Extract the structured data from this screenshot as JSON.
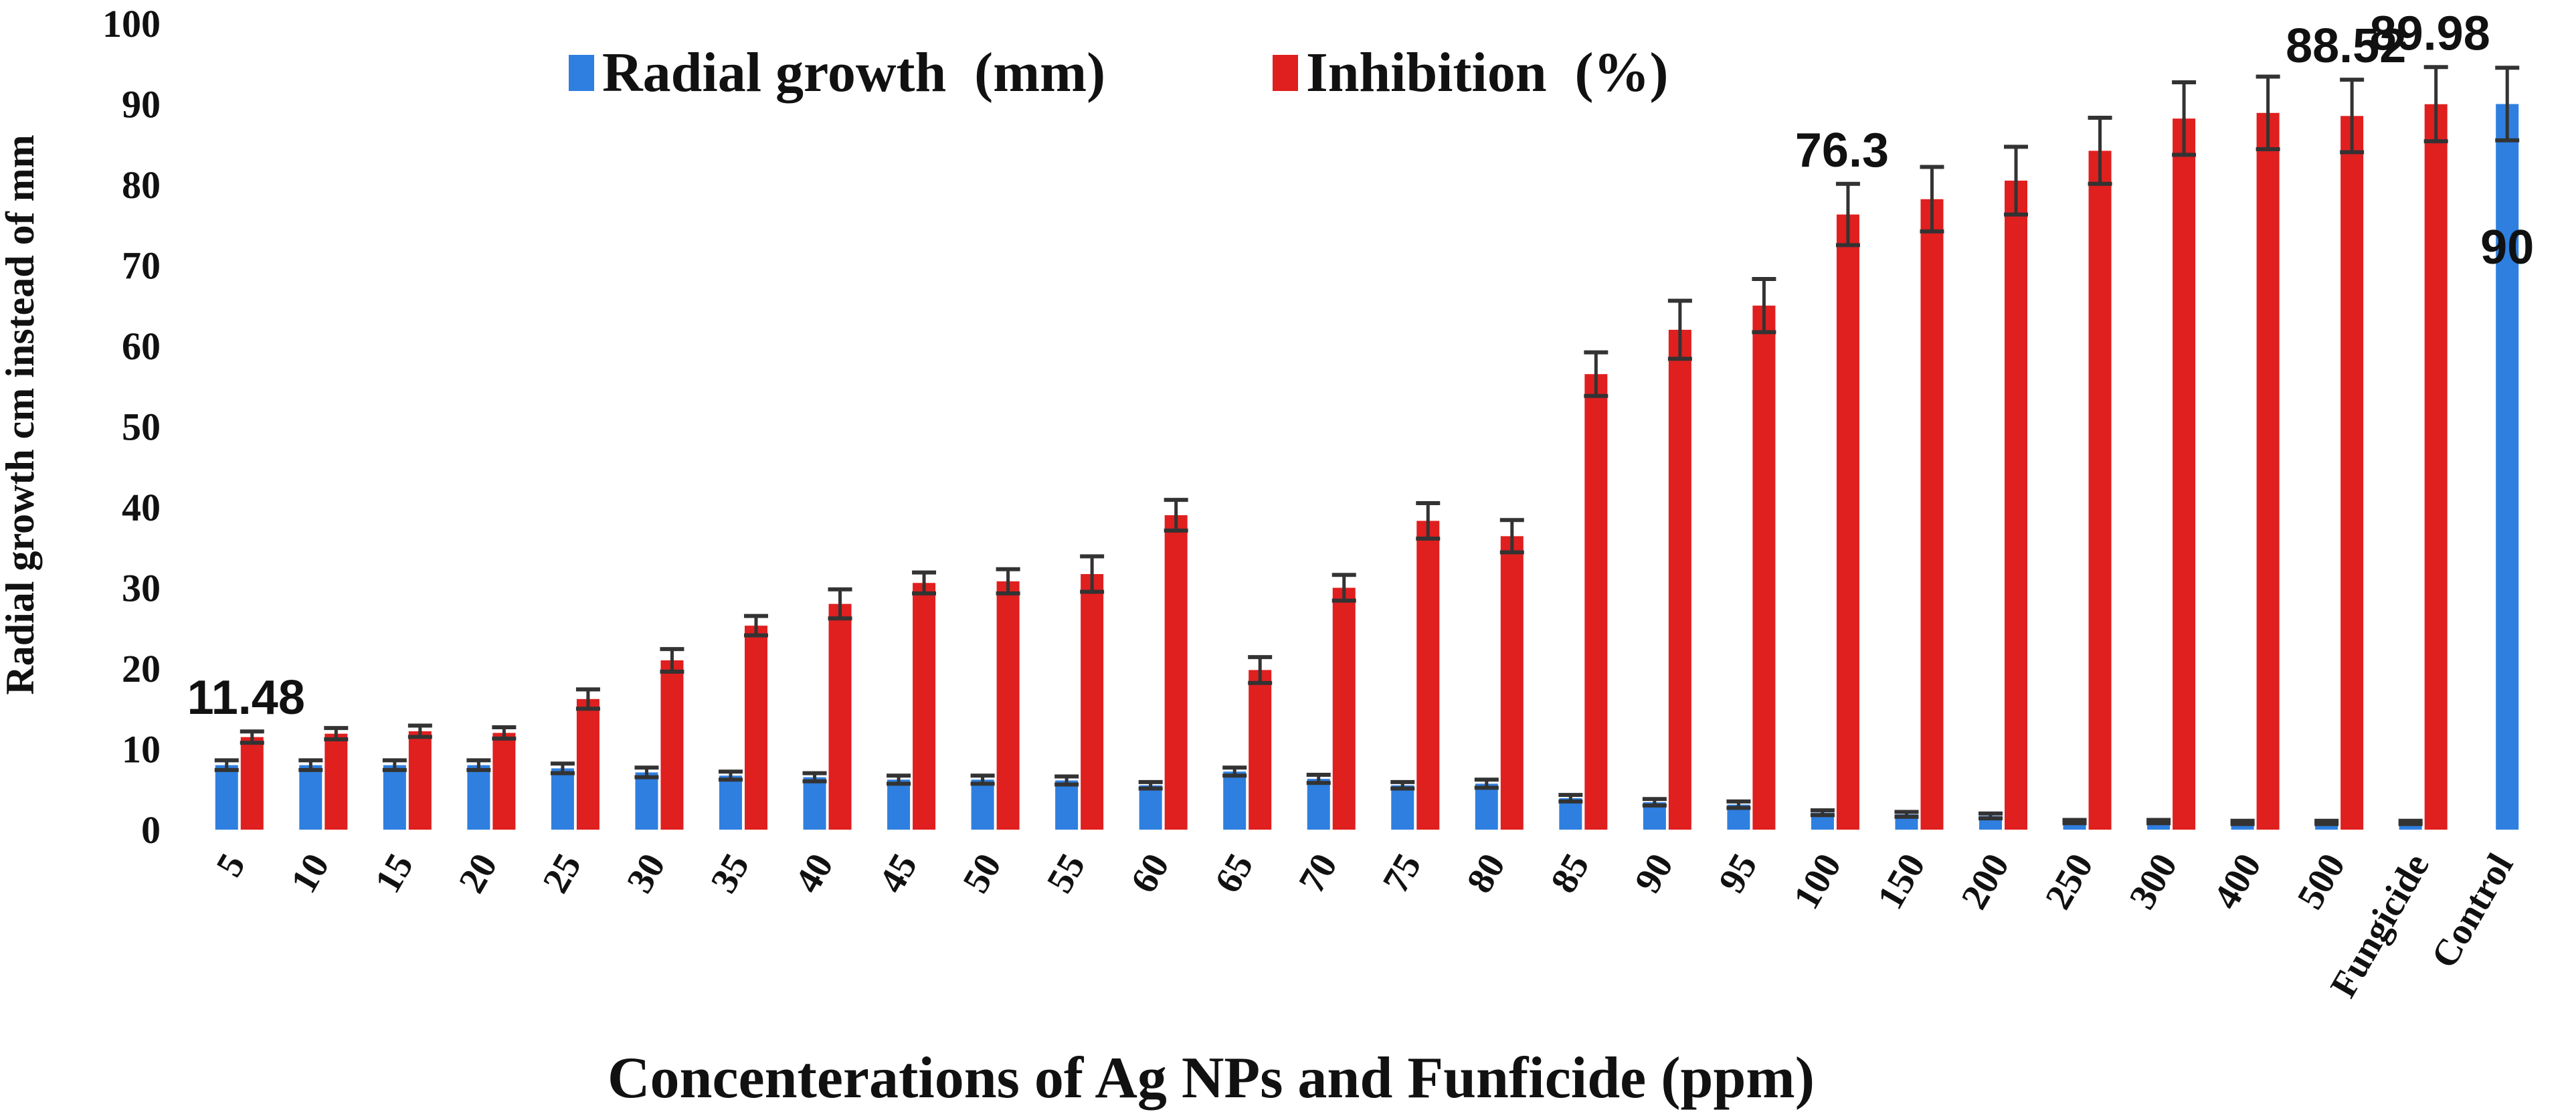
{
  "chart_data": {
    "type": "bar",
    "title": "",
    "xlabel": "Concenterations of Ag NPs and Funficide (ppm)",
    "ylabel": "Radial growth cm instead of mm",
    "ylim": [
      0,
      100
    ],
    "yticks": [
      "0",
      "10",
      "20",
      "30",
      "40",
      "50",
      "60",
      "70",
      "80",
      "90",
      "100"
    ],
    "grid": false,
    "legend_position": "top",
    "categories": [
      "5",
      "10",
      "15",
      "20",
      "25",
      "30",
      "35",
      "40",
      "45",
      "50",
      "55",
      "60",
      "65",
      "70",
      "75",
      "80",
      "85",
      "90",
      "95",
      "100",
      "150",
      "200",
      "250",
      "300",
      "400",
      "500",
      "Fungicide",
      "Control"
    ],
    "series": [
      {
        "name": "Radial growth  (mm)",
        "color": "#2e7fe0",
        "values": [
          8.0,
          8.0,
          8.0,
          8.0,
          7.6,
          7.1,
          6.7,
          6.5,
          6.2,
          6.2,
          6.1,
          5.5,
          7.2,
          6.3,
          5.5,
          5.7,
          3.9,
          3.4,
          3.1,
          2.1,
          1.9,
          1.7,
          1.0,
          1.0,
          0.9,
          0.9,
          0.9,
          90.0
        ],
        "errors": [
          0.6,
          0.6,
          0.6,
          0.6,
          0.6,
          0.6,
          0.5,
          0.5,
          0.5,
          0.5,
          0.5,
          0.4,
          0.5,
          0.5,
          0.4,
          0.5,
          0.4,
          0.4,
          0.4,
          0.3,
          0.3,
          0.3,
          0.2,
          0.2,
          0.2,
          0.2,
          0.2,
          4.5
        ]
      },
      {
        "name": "Inhibition  (%)",
        "color": "#e01f1f",
        "values": [
          11.48,
          11.9,
          12.2,
          12.0,
          16.2,
          21.0,
          25.3,
          28.0,
          30.6,
          30.8,
          31.7,
          39.0,
          19.8,
          30.0,
          38.3,
          36.4,
          56.5,
          62.0,
          65.0,
          76.3,
          78.2,
          80.5,
          84.2,
          88.2,
          88.9,
          88.52,
          89.98,
          null
        ],
        "errors": [
          0.7,
          0.7,
          0.7,
          0.7,
          1.2,
          1.4,
          1.2,
          1.8,
          1.3,
          1.5,
          2.2,
          1.9,
          1.6,
          1.6,
          2.2,
          2.0,
          2.7,
          3.6,
          3.3,
          3.8,
          4.0,
          4.2,
          4.1,
          4.5,
          4.5,
          4.5,
          4.6,
          null
        ]
      }
    ],
    "data_labels": [
      {
        "text": "11.48",
        "category": "5",
        "series": "Inhibition  (%)"
      },
      {
        "text": "76.3",
        "category": "100",
        "series": "Inhibition  (%)"
      },
      {
        "text": "88.52",
        "category": "500",
        "series": "Inhibition  (%)"
      },
      {
        "text": "89.98",
        "category": "Fungicide",
        "series": "Inhibition  (%)"
      },
      {
        "text": "90",
        "category": "Control",
        "series": "Radial growth  (mm)"
      }
    ]
  }
}
